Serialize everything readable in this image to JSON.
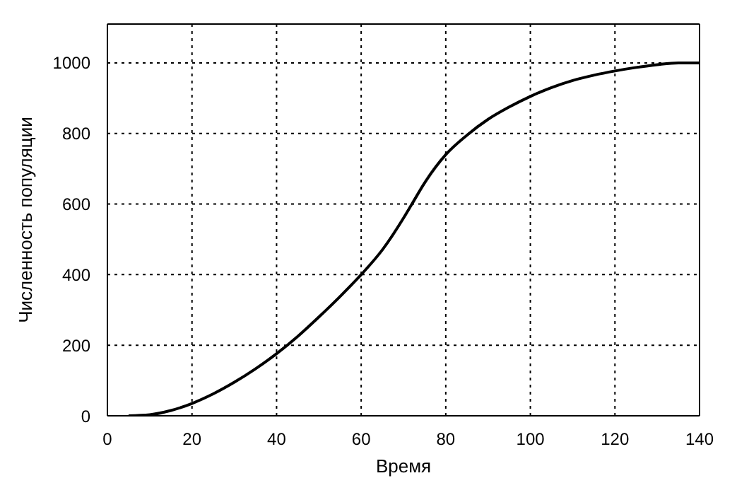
{
  "chart_data": {
    "type": "line",
    "xlabel": "Время",
    "ylabel": "Численность популяции",
    "xlim": [
      0,
      140
    ],
    "xticks": [
      0,
      20,
      40,
      60,
      80,
      100,
      120,
      140
    ],
    "ylim": [
      0,
      1110
    ],
    "yticks": [
      0,
      200,
      400,
      600,
      800,
      1000
    ],
    "grid": true,
    "legend": false,
    "marker": "none",
    "line_style": "solid",
    "series": [
      {
        "color": "#000000",
        "x": [
          5,
          10,
          15,
          20,
          25,
          30,
          35,
          40,
          45,
          50,
          55,
          60,
          65,
          70,
          72,
          75,
          80,
          85,
          90,
          95,
          100,
          105,
          110,
          115,
          120,
          125,
          130,
          135,
          140
        ],
        "values": [
          0,
          3,
          15,
          35,
          62,
          95,
          133,
          176,
          225,
          280,
          338,
          400,
          470,
          560,
          600,
          660,
          740,
          795,
          840,
          875,
          905,
          930,
          950,
          965,
          977,
          987,
          995,
          1000,
          1000
        ]
      }
    ]
  }
}
